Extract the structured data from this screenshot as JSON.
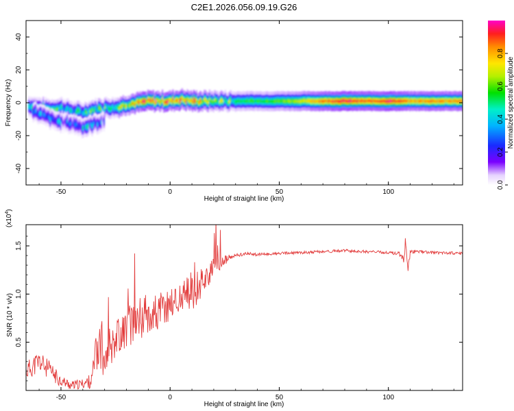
{
  "title": "C2E1.2026.056.09.19.G26",
  "chart_data": [
    {
      "type": "heatmap",
      "xlabel": "Height of straight line (km)",
      "ylabel": "Frequency (Hz)",
      "xlim": [
        -66,
        134
      ],
      "ylim": [
        -50,
        50
      ],
      "xticks": [
        -50,
        0,
        50,
        100
      ],
      "yticks": [
        -40,
        -20,
        0,
        20,
        40
      ],
      "colorbar": {
        "label": "Normalized spectral amplitude",
        "range": [
          0,
          1
        ],
        "ticks": [
          "0.0",
          "0.2",
          "0.4",
          "0.6",
          "0.8"
        ],
        "tick_values": [
          0,
          0.2,
          0.4,
          0.6,
          0.8
        ]
      },
      "trace": [
        {
          "x": -65,
          "f": -2,
          "a": 0.45
        },
        {
          "x": -60,
          "f": -3,
          "a": 0.5
        },
        {
          "x": -55,
          "f": -4,
          "a": 0.55
        },
        {
          "x": -50,
          "f": -3,
          "a": 0.45
        },
        {
          "x": -45,
          "f": -5,
          "a": 0.4
        },
        {
          "x": -40,
          "f": -6,
          "a": 0.45
        },
        {
          "x": -35,
          "f": -4,
          "a": 0.5
        },
        {
          "x": -30,
          "f": -3,
          "a": 0.55
        },
        {
          "x": -25,
          "f": -3,
          "a": 0.6
        },
        {
          "x": -20,
          "f": -1,
          "a": 0.65
        },
        {
          "x": -15,
          "f": 0,
          "a": 0.75
        },
        {
          "x": -10,
          "f": 1,
          "a": 0.85
        },
        {
          "x": -5,
          "f": 1,
          "a": 0.8
        },
        {
          "x": 0,
          "f": 1,
          "a": 0.85
        },
        {
          "x": 5,
          "f": 2,
          "a": 0.9
        },
        {
          "x": 10,
          "f": 1,
          "a": 0.8
        },
        {
          "x": 15,
          "f": 1,
          "a": 0.7
        },
        {
          "x": 20,
          "f": 1,
          "a": 0.6
        },
        {
          "x": 30,
          "f": 1,
          "a": 0.55
        },
        {
          "x": 40,
          "f": 1,
          "a": 0.55
        },
        {
          "x": 50,
          "f": 1,
          "a": 0.6
        },
        {
          "x": 60,
          "f": 1,
          "a": 0.7
        },
        {
          "x": 70,
          "f": 1,
          "a": 0.85
        },
        {
          "x": 80,
          "f": 1,
          "a": 0.95
        },
        {
          "x": 90,
          "f": 1,
          "a": 0.85
        },
        {
          "x": 100,
          "f": 1,
          "a": 0.95
        },
        {
          "x": 110,
          "f": 1,
          "a": 0.8
        },
        {
          "x": 120,
          "f": 1,
          "a": 0.85
        },
        {
          "x": 134,
          "f": 1,
          "a": 0.8
        }
      ],
      "branch": [
        {
          "x": -63,
          "f": -5,
          "a": 0.35
        },
        {
          "x": -58,
          "f": -8,
          "a": 0.35
        },
        {
          "x": -53,
          "f": -11,
          "a": 0.3
        },
        {
          "x": -48,
          "f": -12,
          "a": 0.3
        },
        {
          "x": -44,
          "f": -13,
          "a": 0.3
        },
        {
          "x": -40,
          "f": -15,
          "a": 0.35
        },
        {
          "x": -30,
          "f": -11,
          "a": 0.25
        }
      ]
    },
    {
      "type": "line",
      "xlabel": "Height of straight line (km)",
      "ylabel": "SNR (10 * v/v)",
      "y_multiplier": "(x10",
      "y_multiplier_exp": "4",
      "y_multiplier_close": ")",
      "xlim": [
        -66,
        134
      ],
      "ylim": [
        0,
        1.72
      ],
      "xticks": [
        -50,
        0,
        50,
        100
      ],
      "yticks": [
        0.5,
        1.0,
        1.5
      ],
      "color": "#e23c3c",
      "series": [
        {
          "name": "SNR",
          "x": [
            -66,
            -60,
            -55,
            -50,
            -45,
            -40,
            -36,
            -33,
            -30,
            -25,
            -20,
            -15,
            -10,
            -5,
            0,
            5,
            10,
            15,
            20,
            25,
            30,
            35,
            40,
            50,
            60,
            70,
            80,
            90,
            100,
            105,
            107,
            108,
            109,
            110,
            115,
            120,
            125,
            134
          ],
          "y": [
            0.2,
            0.3,
            0.2,
            0.1,
            0.05,
            0.07,
            0.1,
            0.45,
            0.4,
            0.55,
            0.65,
            0.75,
            0.8,
            0.8,
            0.9,
            0.95,
            1.0,
            1.15,
            1.25,
            1.35,
            1.4,
            1.42,
            1.41,
            1.42,
            1.43,
            1.44,
            1.45,
            1.44,
            1.43,
            1.42,
            1.35,
            1.6,
            1.25,
            1.44,
            1.44,
            1.43,
            1.43,
            1.42
          ],
          "noise": [
            0.1,
            0.12,
            0.1,
            0.06,
            0.05,
            0.05,
            0.08,
            0.3,
            0.25,
            0.2,
            0.22,
            0.25,
            0.2,
            0.22,
            0.18,
            0.2,
            0.2,
            0.15,
            0.12,
            0.05,
            0.02,
            0.015,
            0.015,
            0.015,
            0.015,
            0.015,
            0.015,
            0.015,
            0.015,
            0.02,
            0.04,
            0.1,
            0.08,
            0.02,
            0.015,
            0.015,
            0.015,
            0.015
          ]
        }
      ]
    }
  ]
}
